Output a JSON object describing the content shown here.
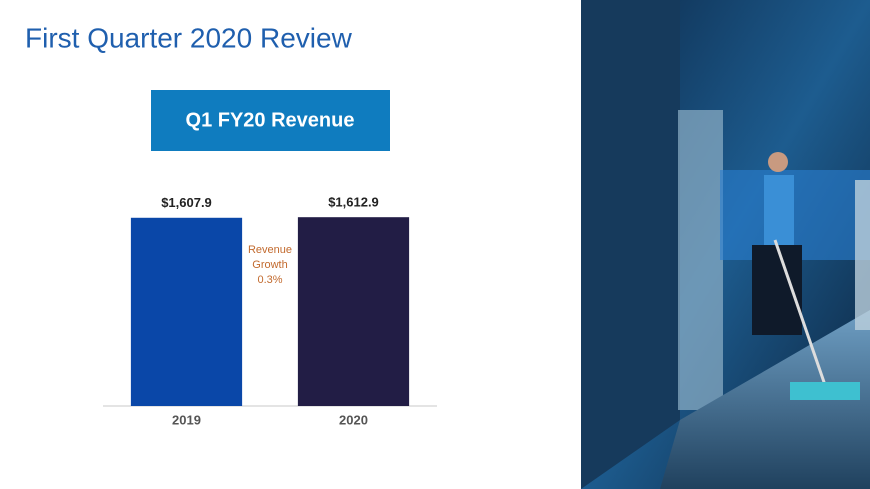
{
  "chart_data": {
    "type": "bar",
    "title": "First Quarter 2020 Review",
    "subtitle": "Q1 FY20 Revenue",
    "categories": [
      "2019",
      "2020"
    ],
    "values": [
      1607.9,
      1612.9
    ],
    "value_labels": [
      "$1,607.9",
      "$1,612.9"
    ],
    "colors": [
      "#0a47a8",
      "#221d45"
    ],
    "ylim": [
      0,
      1700
    ],
    "annotation": [
      "Revenue",
      "Growth",
      "0.3%"
    ]
  }
}
